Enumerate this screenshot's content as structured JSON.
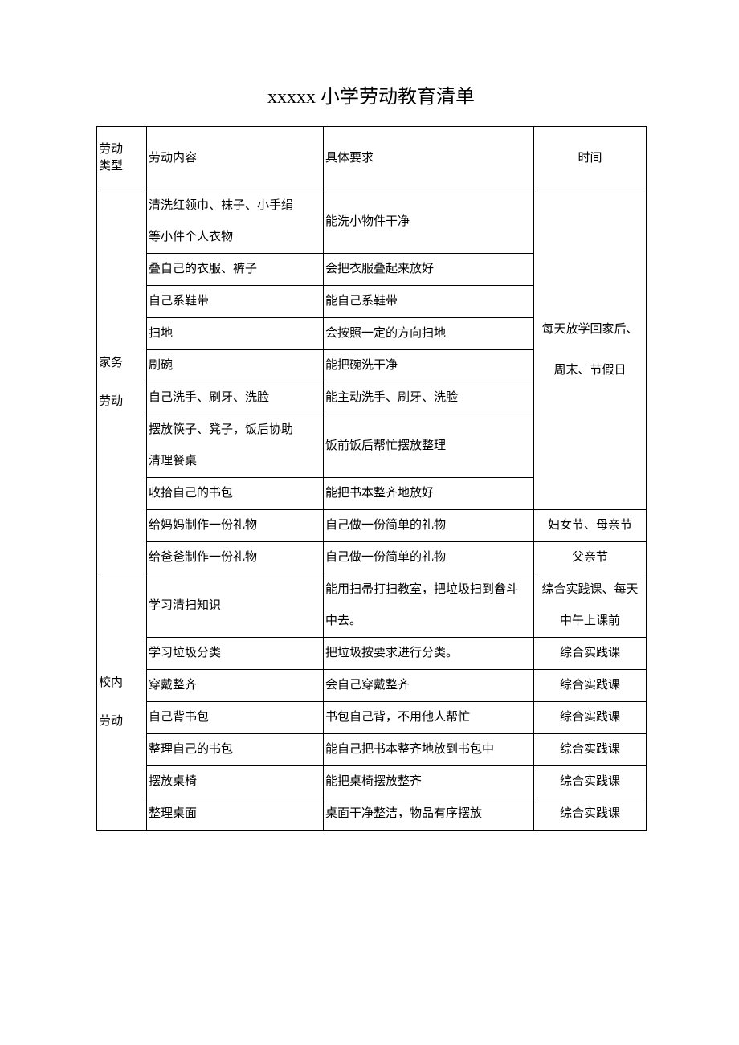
{
  "title": "xxxxx 小学劳动教育清单",
  "headers": {
    "type": "劳动\n类型",
    "content": "劳动内容",
    "requirement": "具体要求",
    "time": "时间"
  },
  "sections": [
    {
      "type": "家务\n劳动",
      "rows": [
        {
          "content": "清洗红领巾、袜子、小手绢\n等小件个人衣物",
          "requirement": "能洗小物件干净",
          "time": "每天放学回家后、\n周末、节假日",
          "time_span": 8,
          "first_no_bottom": true
        },
        {
          "content": "叠自己的衣服、裤子",
          "requirement": "会把衣服叠起来放好"
        },
        {
          "content": "自己系鞋带",
          "requirement": "能自己系鞋带"
        },
        {
          "content": "扫地",
          "requirement": "会按照一定的方向扫地"
        },
        {
          "content": "刷碗",
          "requirement": "能把碗洗干净"
        },
        {
          "content": "自己洗手、刷牙、洗脸",
          "requirement": "能主动洗手、刷牙、洗脸"
        },
        {
          "content": "摆放筷子、凳子，饭后协助\n清理餐桌",
          "requirement": "饭前饭后帮忙摆放整理"
        },
        {
          "content": "收拾自己的书包",
          "requirement": "能把书本整齐地放好"
        },
        {
          "content": "给妈妈制作一份礼物",
          "requirement": "自己做一份简单的礼物",
          "time": "妇女节、母亲节"
        },
        {
          "content": "给爸爸制作一份礼物",
          "requirement": "自己做一份简单的礼物",
          "time": "父亲节"
        }
      ]
    },
    {
      "type": "校内\n劳动",
      "rows": [
        {
          "content": "学习清扫知识",
          "requirement": "能用扫帚打扫教室，把垃圾扫到畚斗\n中去。",
          "time": "综合实践课、每天\n中午上课前"
        },
        {
          "content": "学习垃圾分类",
          "requirement": "把垃圾按要求进行分类。",
          "time": "综合实践课"
        },
        {
          "content": "穿戴整齐",
          "requirement": "会自己穿戴整齐",
          "time": "综合实践课"
        },
        {
          "content": "自己背书包",
          "requirement": "书包自己背，不用他人帮忙",
          "time": "综合实践课"
        },
        {
          "content": "整理自己的书包",
          "requirement": "能自己把书本整齐地放到书包中",
          "time": "综合实践课"
        },
        {
          "content": "摆放桌椅",
          "requirement": "能把桌椅摆放整齐",
          "time": "综合实践课"
        },
        {
          "content": "整理桌面",
          "requirement": "桌面干净整洁，物品有序摆放",
          "time": "综合实践课"
        }
      ]
    }
  ]
}
